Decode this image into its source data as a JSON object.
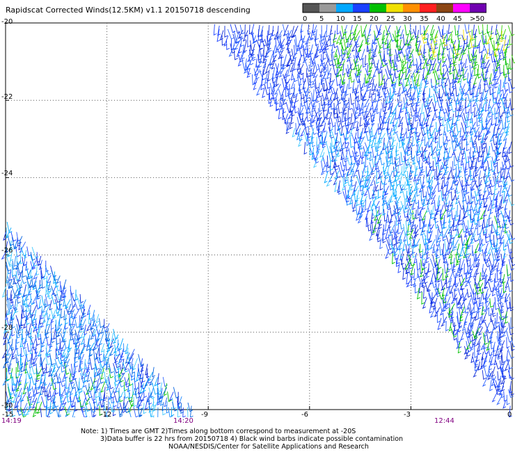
{
  "title": "Rapidscat Corrected Winds(12.5KM) v1.1 20150718 descending",
  "legend": {
    "labels": [
      "0",
      "5",
      "10",
      "15",
      "20",
      "25",
      "30",
      "35",
      "40",
      "45",
      ">50 knots"
    ],
    "colors": [
      "#555555",
      "#9a9a9a",
      "#00a8ff",
      "#1a40ff",
      "#00c000",
      "#f0e000",
      "#ff9000",
      "#ff2020",
      "#8b4513",
      "#ff00ff",
      "#7000b0"
    ]
  },
  "axes": {
    "lat_labels": [
      "-20",
      "-22",
      "-24",
      "-26",
      "-28",
      "-30"
    ],
    "lon_labels": [
      "-15",
      "-12",
      "-9",
      "-6",
      "-3",
      "0"
    ],
    "lat_range": [
      -30,
      -20
    ],
    "lon_range": [
      -15,
      0
    ],
    "time_labels": [
      "14:19",
      "14:20",
      "12:44"
    ],
    "time_color": "#800080"
  },
  "notes": {
    "line1": "Note: 1) Times are GMT 2)Times along bottom correspond to measurement at -20S",
    "line2": "3)Data buffer is 22 hrs from 20150718 4) Black wind barbs indicate possible contamination",
    "line3": "NOAA/NESDIS/Center for Satellite Applications and Research"
  }
}
